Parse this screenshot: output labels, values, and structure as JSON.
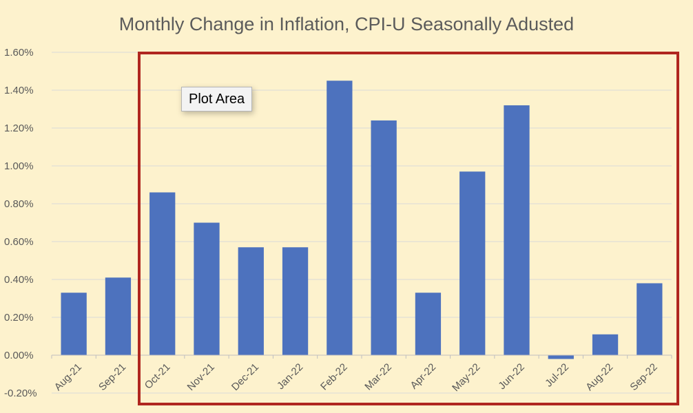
{
  "chart_data": {
    "type": "bar",
    "title": "Monthly Change in Inflation, CPI-U Seasonally Adusted",
    "xlabel": "",
    "ylabel": "",
    "categories": [
      "Aug-21",
      "Sep-21",
      "Oct-21",
      "Nov-21",
      "Dec-21",
      "Jan-22",
      "Feb-22",
      "Mar-22",
      "Apr-22",
      "May-22",
      "Jun-22",
      "Jul-22",
      "Aug-22",
      "Sep-22"
    ],
    "values": [
      0.33,
      0.41,
      0.86,
      0.7,
      0.57,
      0.57,
      1.45,
      1.24,
      0.33,
      0.97,
      1.32,
      -0.02,
      0.11,
      0.38
    ],
    "value_unit": "%",
    "ylim": [
      -0.2,
      1.6
    ],
    "yticks": [
      "1.60%",
      "1.40%",
      "1.20%",
      "1.00%",
      "0.80%",
      "0.60%",
      "0.40%",
      "0.20%",
      "0.00%",
      "-0.20%"
    ],
    "grid": true,
    "legend": "none",
    "bar_color": "#4d72be",
    "background_color": "#fdf2cd"
  },
  "tooltip": {
    "label": "Plot Area"
  },
  "highlight_color": "#b0261f"
}
